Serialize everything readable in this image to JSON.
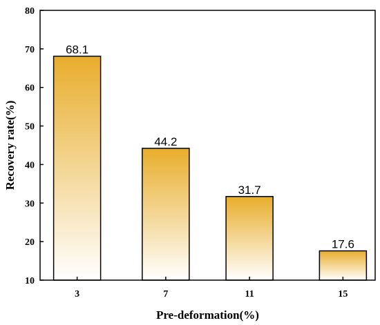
{
  "chart_data": {
    "type": "bar",
    "title": "",
    "xlabel": "Pre-deformation(%)",
    "ylabel": "Recovery rate(%)",
    "categories": [
      "3",
      "7",
      "11",
      "15"
    ],
    "values": [
      68.1,
      44.2,
      31.7,
      17.6
    ],
    "data_labels": [
      "68.1",
      "44.2",
      "31.7",
      "17.6"
    ],
    "ylim": [
      10,
      80
    ],
    "yticks": [
      "10",
      "20",
      "30",
      "40",
      "50",
      "60",
      "70",
      "80"
    ],
    "grid": false,
    "legend": "none",
    "colors": {
      "bar_top": "#e8ad2c",
      "bar_bottom": "#ffffff",
      "bar_outline": "#000000",
      "axis": "#000000"
    }
  }
}
